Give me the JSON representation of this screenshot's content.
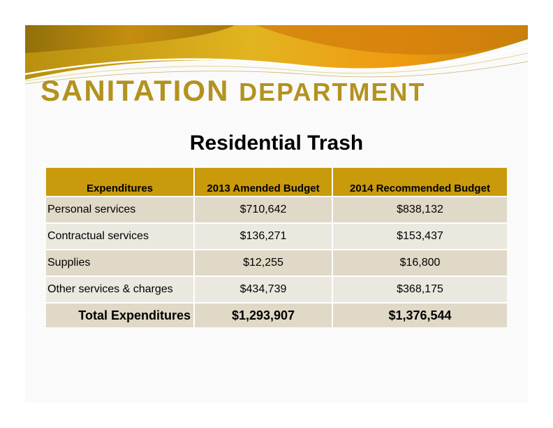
{
  "slide": {
    "title_word1": "SANITATION",
    "title_word2": "DEPARTMENT",
    "subtitle": "Residential Trash"
  },
  "table": {
    "headers": [
      "Expenditures",
      "2013 Amended Budget",
      "2014 Recommended Budget"
    ],
    "rows": [
      {
        "label": "Personal services",
        "budget_2013": "$710,642",
        "budget_2014": "$838,132"
      },
      {
        "label": "Contractual services",
        "budget_2013": "$136,271",
        "budget_2014": "$153,437"
      },
      {
        "label": "Supplies",
        "budget_2013": "$12,255",
        "budget_2014": "$16,800"
      },
      {
        "label": "Other services & charges",
        "budget_2013": "$434,739",
        "budget_2014": "$368,175"
      }
    ],
    "total": {
      "label": "Total Expenditures",
      "budget_2013": "$1,293,907",
      "budget_2014": "$1,376,544"
    }
  },
  "colors": {
    "title_gold": "#b3921f",
    "header_gold": "#c99a0b",
    "row_dark": "#e0d9c7",
    "row_light": "#ebe8df"
  }
}
